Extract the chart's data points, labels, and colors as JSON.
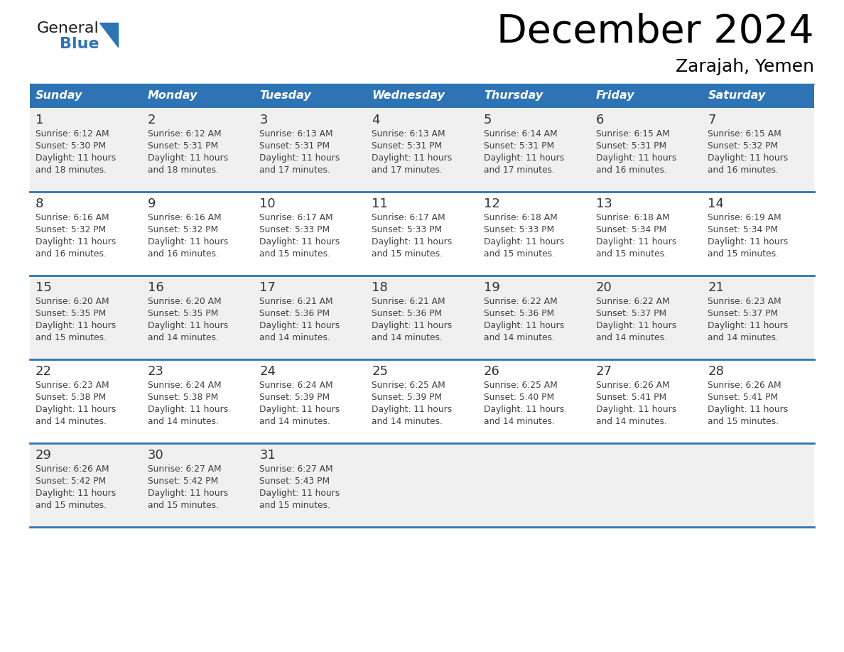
{
  "title": "December 2024",
  "subtitle": "Zarajah, Yemen",
  "days_of_week": [
    "Sunday",
    "Monday",
    "Tuesday",
    "Wednesday",
    "Thursday",
    "Friday",
    "Saturday"
  ],
  "header_bg": "#2E74B5",
  "header_text": "#FFFFFF",
  "cell_bg_odd": "#F0F0F0",
  "cell_bg_even": "#FFFFFF",
  "row_line_color": "#2E74B5",
  "text_color": "#404040",
  "day_num_color": "#333333",
  "calendar_data": [
    [
      {
        "day": 1,
        "sunrise": "6:12 AM",
        "sunset": "5:30 PM",
        "daylight_h": "11 hours",
        "daylight_m": "and 18 minutes."
      },
      {
        "day": 2,
        "sunrise": "6:12 AM",
        "sunset": "5:31 PM",
        "daylight_h": "11 hours",
        "daylight_m": "and 18 minutes."
      },
      {
        "day": 3,
        "sunrise": "6:13 AM",
        "sunset": "5:31 PM",
        "daylight_h": "11 hours",
        "daylight_m": "and 17 minutes."
      },
      {
        "day": 4,
        "sunrise": "6:13 AM",
        "sunset": "5:31 PM",
        "daylight_h": "11 hours",
        "daylight_m": "and 17 minutes."
      },
      {
        "day": 5,
        "sunrise": "6:14 AM",
        "sunset": "5:31 PM",
        "daylight_h": "11 hours",
        "daylight_m": "and 17 minutes."
      },
      {
        "day": 6,
        "sunrise": "6:15 AM",
        "sunset": "5:31 PM",
        "daylight_h": "11 hours",
        "daylight_m": "and 16 minutes."
      },
      {
        "day": 7,
        "sunrise": "6:15 AM",
        "sunset": "5:32 PM",
        "daylight_h": "11 hours",
        "daylight_m": "and 16 minutes."
      }
    ],
    [
      {
        "day": 8,
        "sunrise": "6:16 AM",
        "sunset": "5:32 PM",
        "daylight_h": "11 hours",
        "daylight_m": "and 16 minutes."
      },
      {
        "day": 9,
        "sunrise": "6:16 AM",
        "sunset": "5:32 PM",
        "daylight_h": "11 hours",
        "daylight_m": "and 16 minutes."
      },
      {
        "day": 10,
        "sunrise": "6:17 AM",
        "sunset": "5:33 PM",
        "daylight_h": "11 hours",
        "daylight_m": "and 15 minutes."
      },
      {
        "day": 11,
        "sunrise": "6:17 AM",
        "sunset": "5:33 PM",
        "daylight_h": "11 hours",
        "daylight_m": "and 15 minutes."
      },
      {
        "day": 12,
        "sunrise": "6:18 AM",
        "sunset": "5:33 PM",
        "daylight_h": "11 hours",
        "daylight_m": "and 15 minutes."
      },
      {
        "day": 13,
        "sunrise": "6:18 AM",
        "sunset": "5:34 PM",
        "daylight_h": "11 hours",
        "daylight_m": "and 15 minutes."
      },
      {
        "day": 14,
        "sunrise": "6:19 AM",
        "sunset": "5:34 PM",
        "daylight_h": "11 hours",
        "daylight_m": "and 15 minutes."
      }
    ],
    [
      {
        "day": 15,
        "sunrise": "6:20 AM",
        "sunset": "5:35 PM",
        "daylight_h": "11 hours",
        "daylight_m": "and 15 minutes."
      },
      {
        "day": 16,
        "sunrise": "6:20 AM",
        "sunset": "5:35 PM",
        "daylight_h": "11 hours",
        "daylight_m": "and 14 minutes."
      },
      {
        "day": 17,
        "sunrise": "6:21 AM",
        "sunset": "5:36 PM",
        "daylight_h": "11 hours",
        "daylight_m": "and 14 minutes."
      },
      {
        "day": 18,
        "sunrise": "6:21 AM",
        "sunset": "5:36 PM",
        "daylight_h": "11 hours",
        "daylight_m": "and 14 minutes."
      },
      {
        "day": 19,
        "sunrise": "6:22 AM",
        "sunset": "5:36 PM",
        "daylight_h": "11 hours",
        "daylight_m": "and 14 minutes."
      },
      {
        "day": 20,
        "sunrise": "6:22 AM",
        "sunset": "5:37 PM",
        "daylight_h": "11 hours",
        "daylight_m": "and 14 minutes."
      },
      {
        "day": 21,
        "sunrise": "6:23 AM",
        "sunset": "5:37 PM",
        "daylight_h": "11 hours",
        "daylight_m": "and 14 minutes."
      }
    ],
    [
      {
        "day": 22,
        "sunrise": "6:23 AM",
        "sunset": "5:38 PM",
        "daylight_h": "11 hours",
        "daylight_m": "and 14 minutes."
      },
      {
        "day": 23,
        "sunrise": "6:24 AM",
        "sunset": "5:38 PM",
        "daylight_h": "11 hours",
        "daylight_m": "and 14 minutes."
      },
      {
        "day": 24,
        "sunrise": "6:24 AM",
        "sunset": "5:39 PM",
        "daylight_h": "11 hours",
        "daylight_m": "and 14 minutes."
      },
      {
        "day": 25,
        "sunrise": "6:25 AM",
        "sunset": "5:39 PM",
        "daylight_h": "11 hours",
        "daylight_m": "and 14 minutes."
      },
      {
        "day": 26,
        "sunrise": "6:25 AM",
        "sunset": "5:40 PM",
        "daylight_h": "11 hours",
        "daylight_m": "and 14 minutes."
      },
      {
        "day": 27,
        "sunrise": "6:26 AM",
        "sunset": "5:41 PM",
        "daylight_h": "11 hours",
        "daylight_m": "and 14 minutes."
      },
      {
        "day": 28,
        "sunrise": "6:26 AM",
        "sunset": "5:41 PM",
        "daylight_h": "11 hours",
        "daylight_m": "and 15 minutes."
      }
    ],
    [
      {
        "day": 29,
        "sunrise": "6:26 AM",
        "sunset": "5:42 PM",
        "daylight_h": "11 hours",
        "daylight_m": "and 15 minutes."
      },
      {
        "day": 30,
        "sunrise": "6:27 AM",
        "sunset": "5:42 PM",
        "daylight_h": "11 hours",
        "daylight_m": "and 15 minutes."
      },
      {
        "day": 31,
        "sunrise": "6:27 AM",
        "sunset": "5:43 PM",
        "daylight_h": "11 hours",
        "daylight_m": "and 15 minutes."
      },
      null,
      null,
      null,
      null
    ]
  ],
  "logo_color_general": "#1a1a1a",
  "logo_color_blue": "#2E74B5",
  "logo_triangle_color": "#2E74B5",
  "fig_width": 11.88,
  "fig_height": 9.18,
  "dpi": 100
}
